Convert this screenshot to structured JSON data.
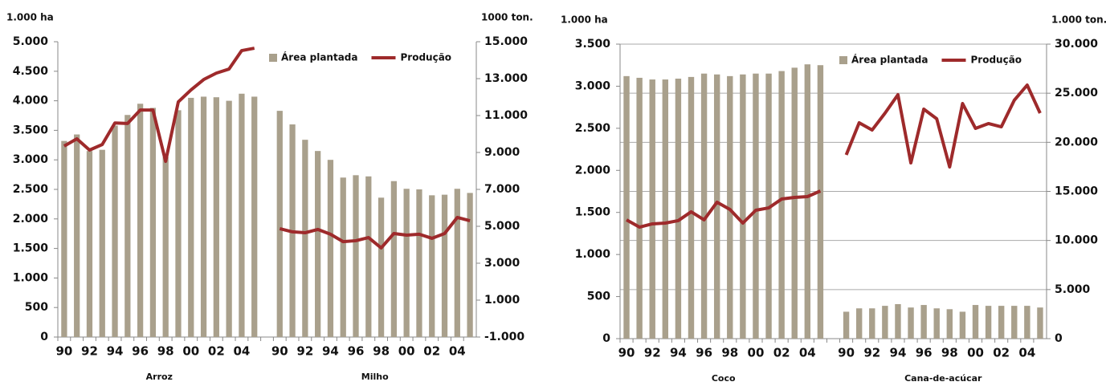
{
  "chart_data": [
    {
      "type": "bar",
      "y_label": "1.000 ha",
      "y2_label": "1000 ton.",
      "grid": false,
      "legend": "top-right",
      "categories": [
        "90",
        null,
        "92",
        null,
        "94",
        null,
        "96",
        null,
        "98",
        null,
        "00",
        null,
        "02",
        null,
        "04",
        null,
        null,
        "90",
        null,
        "92",
        null,
        "94",
        null,
        "96",
        null,
        "98",
        null,
        "00",
        null,
        "02",
        null,
        "04",
        null
      ],
      "groups": [
        "Arroz",
        "Milho"
      ],
      "ylim": [
        0,
        5000
      ],
      "yticks": [
        0,
        500,
        {
          "value": 1000,
          "label": "1.000"
        },
        {
          "value": 1500,
          "label": "1.500"
        },
        {
          "value": 2000,
          "label": "2.000"
        },
        {
          "value": 2500,
          "label": "2.500"
        },
        {
          "value": 3000,
          "label": "3.000"
        },
        {
          "value": 3500,
          "label": "3.500"
        },
        {
          "value": 4000,
          "label": "4.000"
        },
        {
          "value": 4500,
          "label": "4.500"
        },
        {
          "value": 5000,
          "label": "5.000"
        }
      ],
      "y2lim": [
        -1000,
        15000
      ],
      "y2ticks": [
        {
          "value": -1000,
          "label": "-1.000"
        },
        {
          "value": 1000,
          "label": "1.000"
        },
        {
          "value": 3000,
          "label": "3.000"
        },
        {
          "value": 5000,
          "label": "5.000"
        },
        {
          "value": 7000,
          "label": "7.000"
        },
        {
          "value": 9000,
          "label": "9.000"
        },
        {
          "value": 11000,
          "label": "11.000"
        },
        {
          "value": 13000,
          "label": "13.000"
        },
        {
          "value": 15000,
          "label": "15.000"
        }
      ],
      "series": [
        {
          "name": "Área plantada",
          "type": "bar",
          "color": "#a9a08c",
          "values": [
            3320,
            3430,
            3150,
            3170,
            3580,
            3760,
            3950,
            3880,
            3050,
            3840,
            4050,
            4070,
            4060,
            4000,
            4120,
            4070,
            null,
            3830,
            3600,
            3340,
            3150,
            3000,
            2700,
            2740,
            2720,
            2360,
            2640,
            2510,
            2500,
            2400,
            2410,
            2510,
            2440
          ]
        },
        {
          "name": "Produção",
          "type": "line",
          "axis": "y2",
          "color": "#9e2a2b",
          "values": [
            9350,
            9740,
            9130,
            9430,
            10600,
            10570,
            11300,
            11300,
            8520,
            11740,
            12390,
            12950,
            13300,
            13520,
            14520,
            14650,
            null,
            4870,
            4700,
            4650,
            4830,
            4570,
            4170,
            4220,
            4390,
            3830,
            4610,
            4520,
            4570,
            4350,
            4610,
            5480,
            5300
          ]
        }
      ]
    },
    {
      "type": "bar",
      "y_label": "1.000 ha",
      "y2_label": "1.000 ton.",
      "grid": true,
      "legend": "top-right",
      "categories": [
        "90",
        null,
        "92",
        null,
        "94",
        null,
        "96",
        null,
        "98",
        null,
        "00",
        null,
        "02",
        null,
        "04",
        null,
        null,
        "90",
        null,
        "92",
        null,
        "94",
        null,
        "96",
        null,
        "98",
        null,
        "00",
        null,
        "02",
        null,
        "04",
        null
      ],
      "groups": [
        "Coco",
        "Cana-de-acúcar"
      ],
      "ylim": [
        0,
        3500
      ],
      "yticks": [
        0,
        500,
        {
          "value": 1000,
          "label": "1.000"
        },
        {
          "value": 1500,
          "label": "1.500"
        },
        {
          "value": 2000,
          "label": "2.000"
        },
        {
          "value": 2500,
          "label": "2.500"
        },
        {
          "value": 3000,
          "label": "3.000"
        },
        {
          "value": 3500,
          "label": "3.500"
        }
      ],
      "y2lim": [
        0,
        30000
      ],
      "y2ticks": [
        0,
        {
          "value": 5000,
          "label": "5.000"
        },
        {
          "value": 10000,
          "label": "10.000"
        },
        {
          "value": 15000,
          "label": "15.000"
        },
        {
          "value": 20000,
          "label": "20.000"
        },
        {
          "value": 25000,
          "label": "25.000"
        },
        {
          "value": 30000,
          "label": "30.000"
        }
      ],
      "series": [
        {
          "name": "Área plantada",
          "type": "bar",
          "color": "#a9a08c",
          "values": [
            3120,
            3100,
            3080,
            3080,
            3090,
            3110,
            3150,
            3140,
            3120,
            3140,
            3150,
            3150,
            3180,
            3220,
            3260,
            3250,
            null,
            320,
            360,
            360,
            390,
            410,
            370,
            400,
            360,
            350,
            320,
            400,
            390,
            390,
            390,
            390,
            370
          ]
        },
        {
          "name": "Produção",
          "type": "line",
          "axis": "y2",
          "color": "#9e2a2b",
          "values": [
            12100,
            11360,
            11690,
            11770,
            12020,
            12920,
            12100,
            13900,
            13160,
            11770,
            13080,
            13320,
            14220,
            14390,
            14470,
            15040,
            null,
            18720,
            21990,
            21250,
            22970,
            24850,
            17900,
            23380,
            22400,
            17490,
            23950,
            21420,
            21910,
            21580,
            24280,
            25830,
            22970
          ]
        }
      ]
    }
  ]
}
